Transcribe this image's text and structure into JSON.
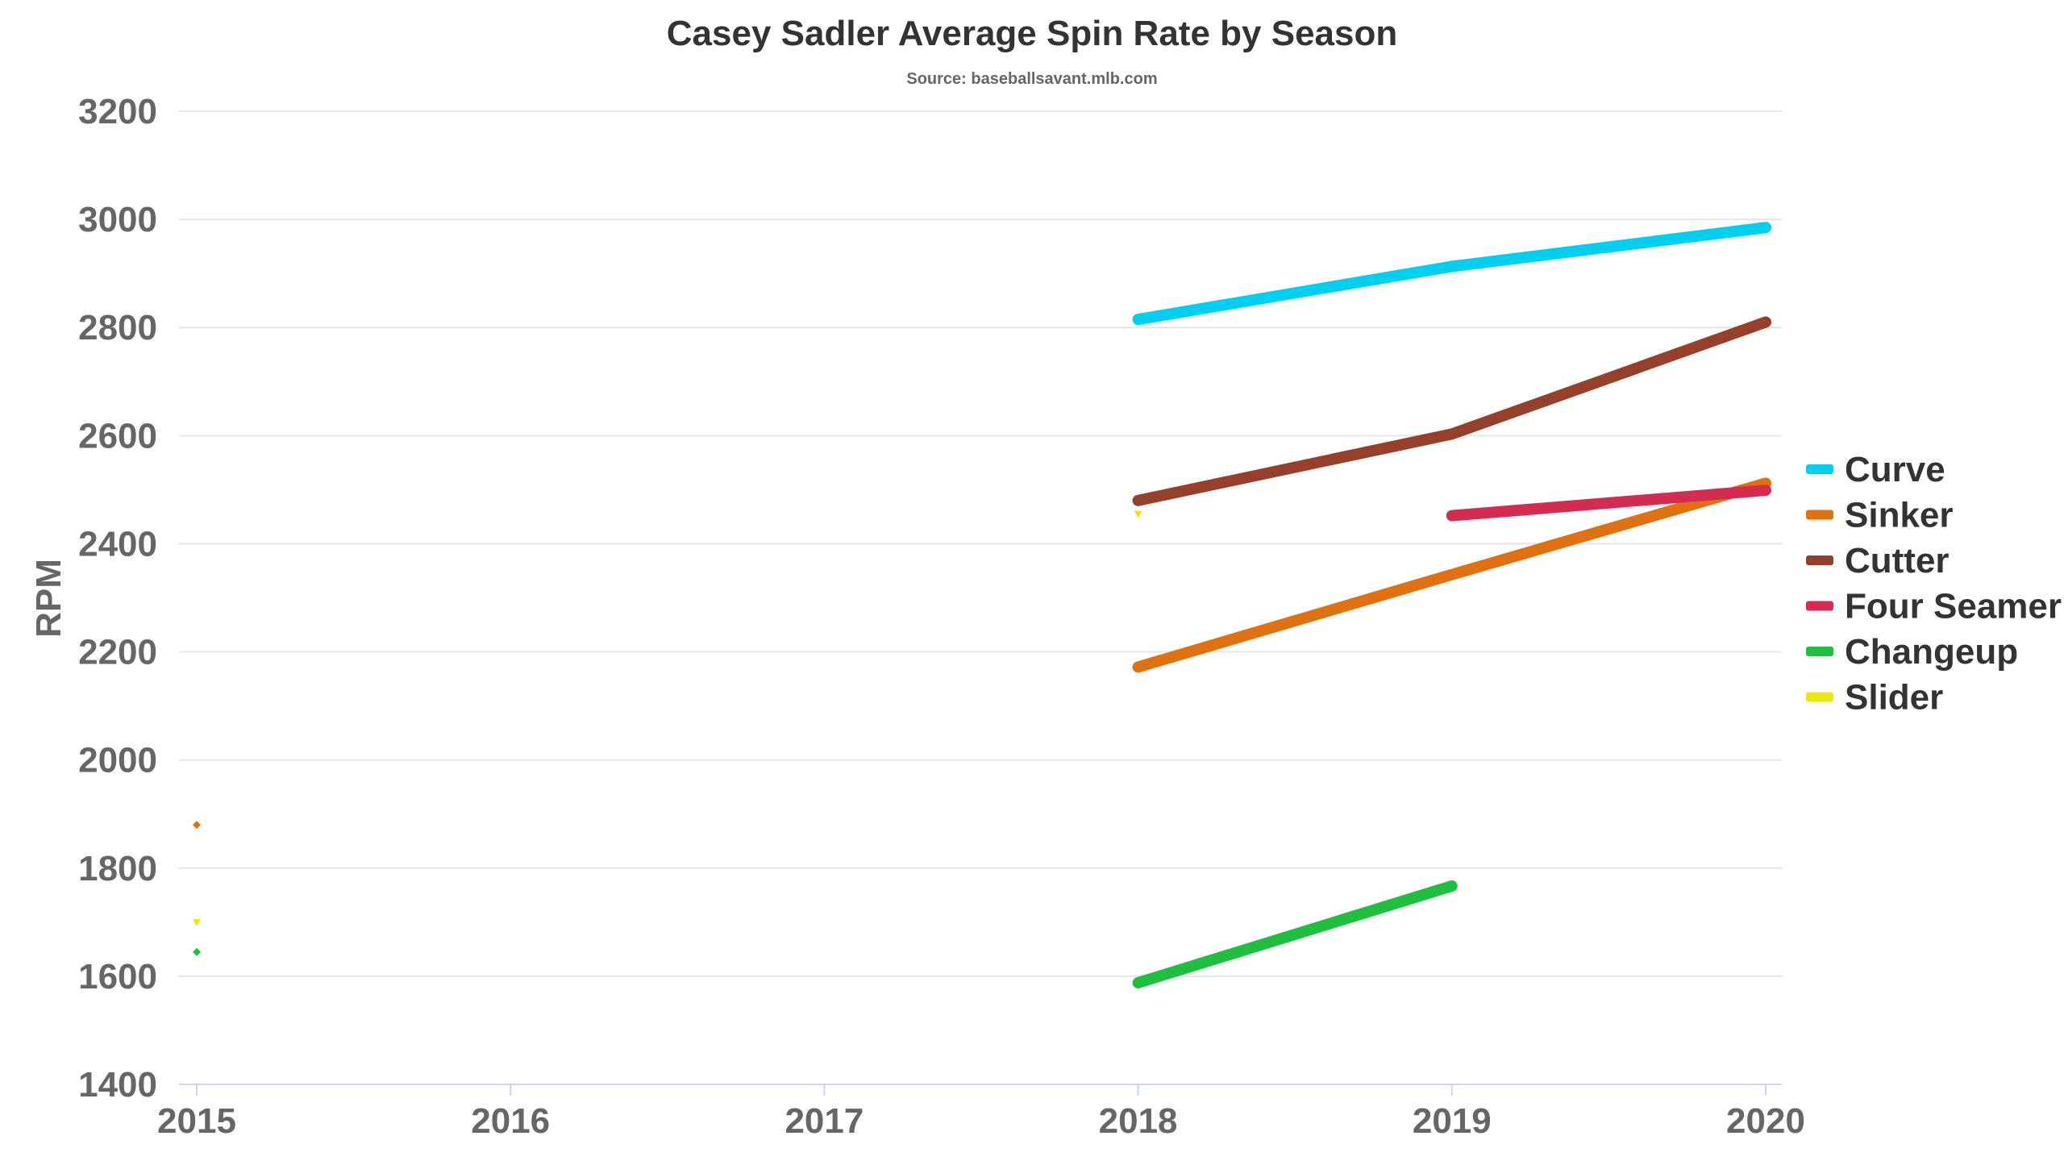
{
  "chart_data": {
    "type": "line",
    "title": "Casey Sadler Average Spin Rate by Season",
    "subtitle": "Source: baseballsavant.mlb.com",
    "xlabel": "",
    "ylabel": "RPM",
    "x_ticks": [
      2015,
      2016,
      2017,
      2018,
      2019,
      2020
    ],
    "xlim": [
      2015,
      2020
    ],
    "y_ticks": [
      1400,
      1600,
      1800,
      2000,
      2200,
      2400,
      2600,
      2800,
      3000,
      3200
    ],
    "ylim": [
      1400,
      3200
    ],
    "grid": true,
    "legend_position": "right",
    "series": [
      {
        "name": "Curve",
        "color": "#00d0ef",
        "points": [
          [
            2018,
            2815
          ],
          [
            2019,
            2913
          ],
          [
            2020,
            2985
          ]
        ]
      },
      {
        "name": "Sinker",
        "color": "#e07010",
        "points": [
          [
            2015,
            1880
          ],
          [
            2018,
            2172
          ],
          [
            2019,
            2343
          ],
          [
            2020,
            2512
          ]
        ]
      },
      {
        "name": "Cutter",
        "color": "#96402c",
        "points": [
          [
            2018,
            2480
          ],
          [
            2019,
            2603
          ],
          [
            2020,
            2810
          ]
        ]
      },
      {
        "name": "Four Seamer",
        "color": "#d42c50",
        "points": [
          [
            2019,
            2452
          ],
          [
            2020,
            2499
          ]
        ]
      },
      {
        "name": "Changeup",
        "color": "#1fc03f",
        "points": [
          [
            2015,
            1645
          ],
          [
            2018,
            1588
          ],
          [
            2019,
            1767
          ]
        ]
      },
      {
        "name": "Slider",
        "color": "#eee613",
        "points": [
          [
            2015,
            1700
          ],
          [
            2018,
            2455
          ]
        ]
      }
    ]
  }
}
